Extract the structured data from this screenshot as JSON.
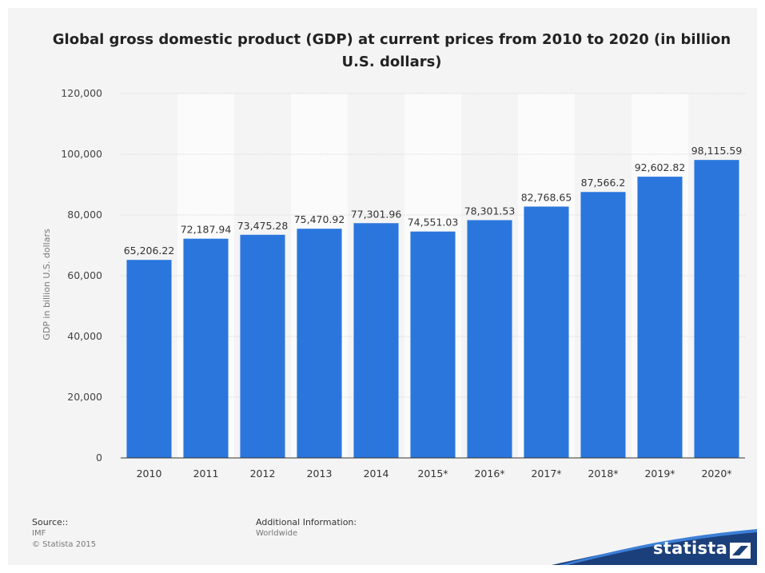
{
  "chart_data": {
    "type": "bar",
    "title": "Global gross domestic product (GDP) at current prices from 2010 to 2020 (in billion U.S. dollars)",
    "xlabel": "",
    "ylabel": "GDP in billion U.S. dollars",
    "categories": [
      "2010",
      "2011",
      "2012",
      "2013",
      "2014",
      "2015*",
      "2016*",
      "2017*",
      "2018*",
      "2019*",
      "2020*"
    ],
    "values": [
      65206.22,
      72187.94,
      73475.28,
      75470.92,
      77301.96,
      74551.03,
      78301.53,
      82768.65,
      87566.2,
      92602.82,
      98115.59
    ],
    "value_labels": [
      "65,206.22",
      "72,187.94",
      "73,475.28",
      "75,470.92",
      "77,301.96",
      "74,551.03",
      "78,301.53",
      "82,768.65",
      "87,566.2",
      "92,602.82",
      "98,115.59"
    ],
    "ylim": [
      0,
      120000
    ],
    "yticks": [
      0,
      20000,
      40000,
      60000,
      80000,
      100000,
      120000
    ],
    "ytick_labels": [
      "0",
      "20,000",
      "40,000",
      "60,000",
      "80,000",
      "100,000",
      "120,000"
    ],
    "grid": true,
    "bar_color": "#2a76dd"
  },
  "footer": {
    "source_heading": "Source::",
    "source_name": "IMF",
    "copyright": "© Statista 2015",
    "additional_heading": "Additional Information:",
    "additional_value": "Worldwide"
  },
  "brand": {
    "name": "statista",
    "color": "#1b3f7a"
  }
}
